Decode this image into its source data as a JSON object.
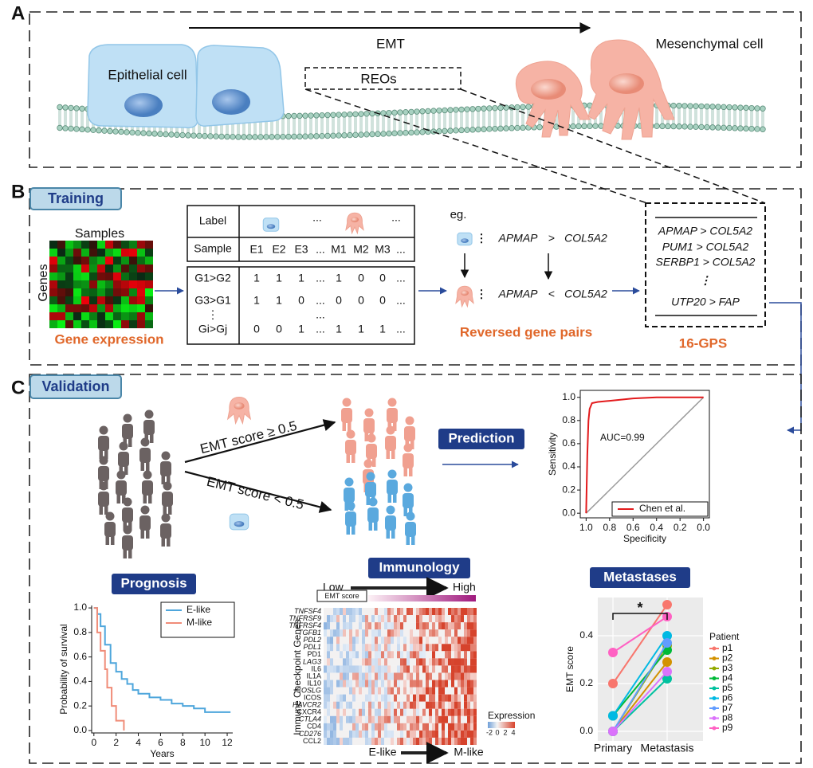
{
  "panel_a": {
    "label": "A",
    "process": "EMT",
    "epithelial": "Epithelial cell",
    "mesenchymal": "Mesenchymal cell",
    "reos": "REOs"
  },
  "panel_b": {
    "label": "B",
    "tab": "Training",
    "heatmap_x": "Samples",
    "heatmap_y": "Genes",
    "heatmap_caption": "Gene expression",
    "table": {
      "row_labels": [
        "Label",
        "Sample"
      ],
      "label_dots": [
        "...",
        "..."
      ],
      "samples": [
        "E1",
        "E2",
        "E3",
        "...",
        "M1",
        "M2",
        "M3",
        "..."
      ],
      "pairs": [
        "G1>G2",
        "G3>G1",
        "⋮",
        "Gi>Gj"
      ],
      "rows": [
        [
          "1",
          "1",
          "1",
          "...",
          "1",
          "0",
          "0",
          "..."
        ],
        [
          "1",
          "1",
          "0",
          "...",
          "0",
          "0",
          "0",
          "..."
        ],
        [
          "0",
          "0",
          "1",
          "...",
          "1",
          "1",
          "1",
          "..."
        ]
      ],
      "ellipsis_row": "..."
    },
    "example": "eg.",
    "pair_before": [
      "APMAP",
      ">",
      "COL5A2"
    ],
    "pair_after": [
      "APMAP",
      "<",
      "COL5A2"
    ],
    "pairs_caption": "Reversed gene pairs",
    "gps": [
      "APMAP > COL5A2",
      "PUM1 > COL5A2",
      "SERBP1 > COL5A2",
      "⋮",
      "UTP20 > FAP"
    ],
    "gps_caption": "16-GPS"
  },
  "panel_c": {
    "label": "C",
    "tab": "Validation",
    "high_rule": "EMT score ≥ 0.5",
    "low_rule": "EMT score < 0.5",
    "prediction": "Prediction",
    "prognosis": "Prognosis",
    "immunology": "Immunology",
    "metastases": "Metastases"
  },
  "immunology_heatmap": {
    "low": "Low",
    "high": "High",
    "bar_label": "EMT score",
    "genes": [
      "TNFSF4",
      "TNFRSF9",
      "TNFRSF4",
      "TGFB1",
      "PDL2",
      "PDL1",
      "PD1",
      "LAG3",
      "IL6",
      "IL1A",
      "IL10",
      "ICOSLG",
      "ICOS",
      "HAVCR2",
      "CXCR4",
      "CTLA4",
      "CD4",
      "CD276",
      "CCL2"
    ],
    "y_label": "Immune Checkpoint Genes",
    "left": "E-like",
    "right": "M-like",
    "legend_title": "Expression",
    "legend_ticks": [
      -2,
      0,
      2,
      4
    ]
  },
  "chart_data": [
    {
      "type": "line",
      "annotation": "AUC=0.99",
      "x_label": "Specificity",
      "y_label": "Sensitivity",
      "xlim": [
        1.05,
        -0.05
      ],
      "ylim": [
        -0.04,
        1.06
      ],
      "xticks": [
        {
          "value": 1,
          "label": "1.0"
        },
        0.8,
        0.6,
        0.4,
        0.2,
        {
          "value": 0,
          "label": "0.0"
        }
      ],
      "yticks": [
        {
          "value": 0,
          "label": "0.0"
        },
        0.2,
        0.4,
        0.6,
        0.8,
        {
          "value": 1,
          "label": "1.0"
        }
      ],
      "legend": "lower right",
      "series": [
        {
          "name": "Chen et al.",
          "color": "#e31a1c",
          "x": [
            1.0,
            0.99,
            0.98,
            0.97,
            0.95,
            0.9,
            0.8,
            0.6,
            0.4,
            0.0
          ],
          "values": [
            0.0,
            0.5,
            0.8,
            0.9,
            0.95,
            0.96,
            0.97,
            0.99,
            1.0,
            1.0
          ]
        }
      ]
    },
    {
      "type": "line",
      "step": true,
      "x_label": "Years",
      "y_label": "Probability of survival",
      "xlim": [
        -0.2,
        12.5
      ],
      "ylim": [
        -0.02,
        1.02
      ],
      "xticks": [
        0,
        2,
        4,
        6,
        8,
        10,
        12
      ],
      "yticks": [
        {
          "value": 0,
          "label": "0.0"
        },
        0.2,
        0.4,
        0.6,
        0.8,
        {
          "value": 1,
          "label": "1.0"
        }
      ],
      "legend": "upper right",
      "series": [
        {
          "name": "E-like",
          "color": "#4ea6dc",
          "x": [
            0,
            0.3,
            0.6,
            1,
            1.5,
            2,
            2.5,
            3,
            3.5,
            4,
            5,
            6,
            7,
            8,
            9,
            10,
            11,
            12.3
          ],
          "values": [
            1,
            0.95,
            0.85,
            0.7,
            0.55,
            0.48,
            0.42,
            0.38,
            0.33,
            0.3,
            0.27,
            0.25,
            0.22,
            0.2,
            0.18,
            0.15,
            0.15,
            0.15
          ]
        },
        {
          "name": "M-like",
          "color": "#f08c78",
          "x": [
            0,
            0.3,
            0.6,
            1,
            1.2,
            1.6,
            2,
            2.7
          ],
          "values": [
            1,
            0.8,
            0.65,
            0.5,
            0.35,
            0.2,
            0.08,
            0
          ]
        }
      ]
    },
    {
      "type": "line",
      "categories": [
        "Primary",
        "Metastasis"
      ],
      "y_label": "EMT score",
      "annotation": "*",
      "legend_title": "Patient",
      "legend": "right",
      "grid": true,
      "background": "#ebebeb",
      "ylim": [
        -0.04,
        0.56
      ],
      "yticks": [
        {
          "value": 0,
          "label": "0.0"
        },
        0.2,
        0.4
      ],
      "series": [
        {
          "name": "p1",
          "color": "#f8766d",
          "values": [
            0.2,
            0.53
          ]
        },
        {
          "name": "p2",
          "color": "#d39200",
          "values": [
            0.0,
            0.29
          ]
        },
        {
          "name": "p3",
          "color": "#93aa00",
          "values": [
            0.0,
            0.36
          ]
        },
        {
          "name": "p4",
          "color": "#00ba38",
          "values": [
            0.065,
            0.34
          ]
        },
        {
          "name": "p5",
          "color": "#00c19f",
          "values": [
            0.0,
            0.22
          ]
        },
        {
          "name": "p6",
          "color": "#00b9e3",
          "values": [
            0.065,
            0.4
          ]
        },
        {
          "name": "p7",
          "color": "#619cff",
          "values": [
            0.0,
            0.37
          ]
        },
        {
          "name": "p8",
          "color": "#db72fb",
          "values": [
            0.0,
            0.25
          ]
        },
        {
          "name": "p9",
          "color": "#ff61c3",
          "values": [
            0.33,
            0.48
          ]
        }
      ]
    }
  ]
}
